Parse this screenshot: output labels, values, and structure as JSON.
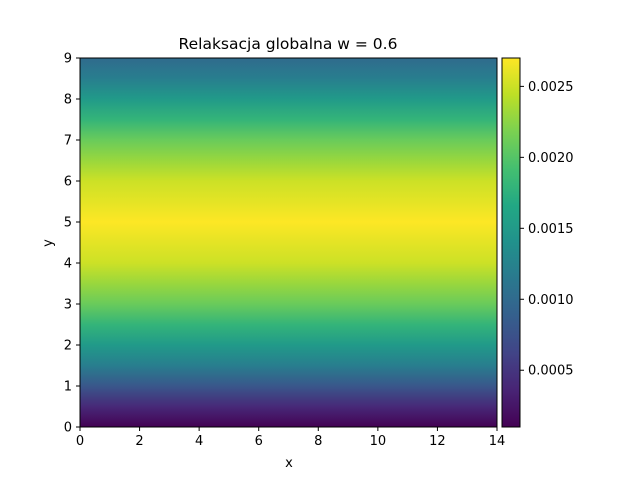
{
  "chart_data": {
    "type": "heatmap",
    "title": "Relaksacja globalna w = 0.6",
    "xlabel": "x",
    "ylabel": "y",
    "xlim": [
      0,
      14
    ],
    "ylim": [
      0,
      9
    ],
    "x_ticks": [
      "0",
      "2",
      "4",
      "6",
      "8",
      "10",
      "12",
      "14"
    ],
    "y_ticks": [
      "0",
      "1",
      "2",
      "3",
      "4",
      "5",
      "6",
      "7",
      "8",
      "9"
    ],
    "colormap": "viridis",
    "grid": false,
    "colorbar": {
      "min": 0.0001,
      "max": 0.0027,
      "ticks": [
        0.0005,
        0.001,
        0.0015,
        0.002,
        0.0025
      ],
      "tick_labels": [
        "0.0005",
        "0.0010",
        "0.0015",
        "0.0020",
        "0.0025"
      ]
    },
    "field_profile_y": {
      "y": [
        0.0,
        0.5,
        1.0,
        1.5,
        2.0,
        2.5,
        3.0,
        3.5,
        4.0,
        4.5,
        5.0,
        5.5,
        6.0,
        6.5,
        7.0,
        7.5,
        8.0,
        8.5,
        9.0
      ],
      "values": [
        0.0001,
        0.0004,
        0.0008,
        0.0012,
        0.0015,
        0.0018,
        0.0021,
        0.0023,
        0.0025,
        0.0026,
        0.0027,
        0.0026,
        0.0025,
        0.0023,
        0.0021,
        0.0018,
        0.0015,
        0.0012,
        0.001
      ],
      "note_constant_in_x": true
    }
  }
}
